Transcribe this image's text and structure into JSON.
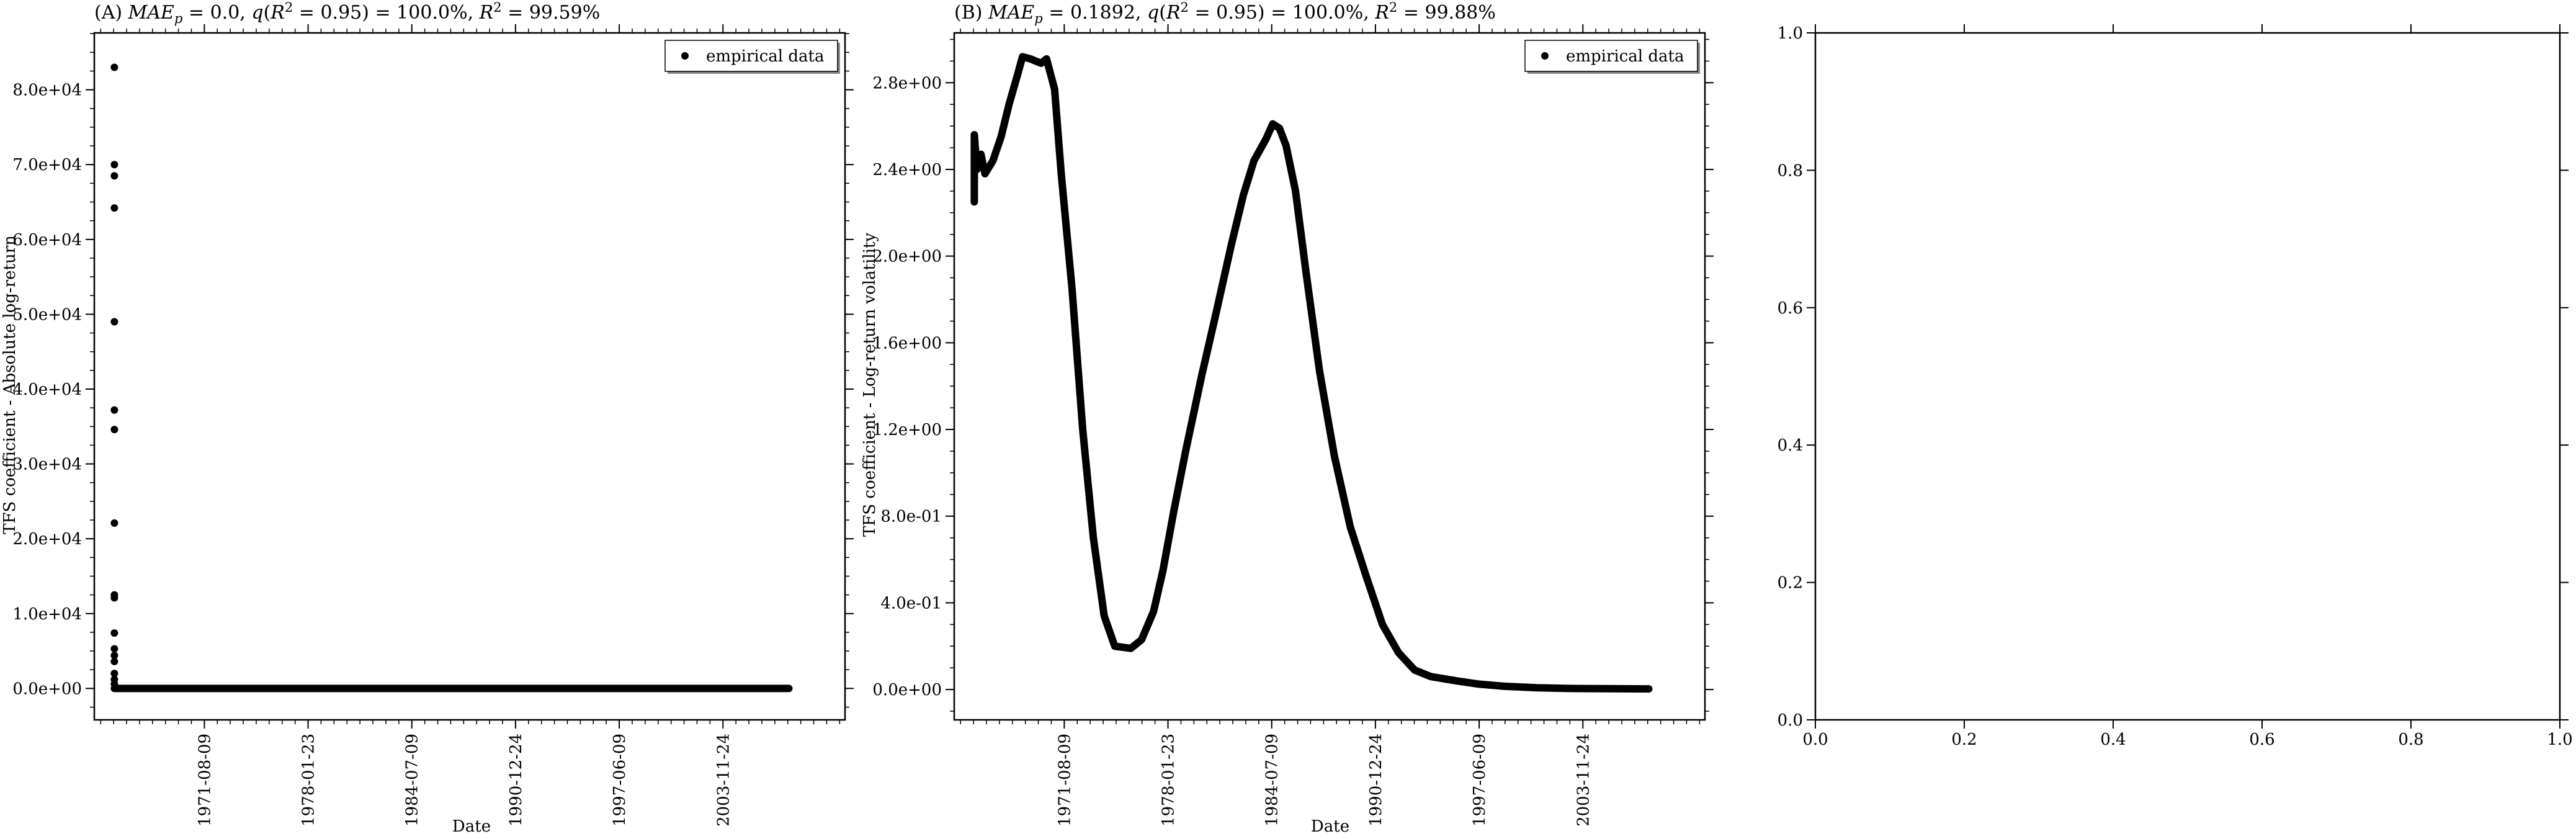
{
  "chart_data": [
    {
      "type": "scatter",
      "title": "(A) MAE_p = 0.0, q(R^2 = 0.95) = 100.0%, R^2 = 99.59%",
      "title_parts": {
        "label": "(A) ",
        "mae_sym": "MAE",
        "mae_sub": "p",
        "mae_val": " = 0.0, ",
        "q_sym": "q",
        "q_mid": "(",
        "r_sym": "R",
        "sup2": "2",
        "q_val": " = 0.95) = 100.0%, ",
        "r2_val": " = 99.59%"
      },
      "xlabel": "Date",
      "ylabel": "TFS coefficient - Absolute log-return",
      "x_tick_labels": [
        "1971-08-09",
        "1978-01-23",
        "1984-07-09",
        "1990-12-24",
        "1997-06-09",
        "2003-11-24"
      ],
      "x_tick_values": [
        "1971-08-09",
        "1978-01-23",
        "1984-07-09",
        "1990-12-24",
        "1997-06-09",
        "2003-11-24"
      ],
      "y_tick_labels": [
        "0.0e+00",
        "1.0e+04",
        "2.0e+04",
        "3.0e+04",
        "4.0e+04",
        "5.0e+04",
        "6.0e+04",
        "7.0e+04",
        "8.0e+04"
      ],
      "y_tick_values": [
        0,
        10000,
        20000,
        30000,
        40000,
        50000,
        60000,
        70000,
        80000
      ],
      "xlim": [
        "1964-10-01",
        "2011-07-01"
      ],
      "ylim": [
        -4200,
        87600
      ],
      "legend": {
        "label": "empirical data",
        "position": "top-right"
      },
      "series": [
        {
          "name": "empirical data",
          "spikes": [
            [
              "1966-01-01",
              83000
            ],
            [
              "1966-01-01",
              70000
            ],
            [
              "1966-01-01",
              68500
            ],
            [
              "1966-01-01",
              64200
            ],
            [
              "1966-01-01",
              49000
            ],
            [
              "1966-01-01",
              37200
            ],
            [
              "1966-01-01",
              34600
            ],
            [
              "1966-01-01",
              22100
            ],
            [
              "1966-01-01",
              12500
            ],
            [
              "1966-01-01",
              12100
            ],
            [
              "1966-01-01",
              7400
            ],
            [
              "1966-01-01",
              5300
            ],
            [
              "1966-01-01",
              4400
            ],
            [
              "1966-01-01",
              3600
            ],
            [
              "1966-01-01",
              2000
            ],
            [
              "1966-01-01",
              1200
            ],
            [
              "1966-01-01",
              600
            ]
          ],
          "baseline": {
            "from": "1966-01-01",
            "to": "2008-01-01",
            "value": 0
          }
        }
      ]
    },
    {
      "type": "scatter",
      "title": "(B) MAE_p = 0.1892, q(R^2 = 0.95) = 100.0%, R^2 = 99.88%",
      "title_parts": {
        "label": "(B) ",
        "mae_sym": "MAE",
        "mae_sub": "p",
        "mae_val": " = 0.1892, ",
        "q_sym": "q",
        "q_mid": "(",
        "r_sym": "R",
        "sup2": "2",
        "q_val": " = 0.95) = 100.0%, ",
        "r2_val": " = 99.88%"
      },
      "xlabel": "Date",
      "ylabel": "TFS coefficient - Log-return volatility",
      "x_tick_labels": [
        "1971-08-09",
        "1978-01-23",
        "1984-07-09",
        "1990-12-24",
        "1997-06-09",
        "2003-11-24"
      ],
      "x_tick_values": [
        "1971-08-09",
        "1978-01-23",
        "1984-07-09",
        "1990-12-24",
        "1997-06-09",
        "2003-11-24"
      ],
      "y_tick_labels": [
        "0.0e+00",
        "4.0e-01",
        "8.0e-01",
        "1.2e+00",
        "1.6e+00",
        "2.0e+00",
        "2.4e+00",
        "2.8e+00"
      ],
      "y_tick_values": [
        0,
        0.4,
        0.8,
        1.2,
        1.6,
        2.0,
        2.4,
        2.8
      ],
      "xlim": [
        "1964-10-01",
        "2011-07-01"
      ],
      "ylim": [
        -0.14,
        3.03
      ],
      "legend": {
        "label": "empirical data",
        "position": "top-right"
      },
      "series": [
        {
          "name": "empirical data",
          "curve": [
            [
              "1966-01-01",
              2.25
            ],
            [
              "1966-01-01",
              2.56
            ],
            [
              "1966-03-01",
              2.4
            ],
            [
              "1966-06-01",
              2.47
            ],
            [
              "1966-09-01",
              2.38
            ],
            [
              "1967-03-01",
              2.44
            ],
            [
              "1967-09-01",
              2.55
            ],
            [
              "1968-03-01",
              2.7
            ],
            [
              "1968-09-01",
              2.83
            ],
            [
              "1969-01-01",
              2.92
            ],
            [
              "1969-07-01",
              2.91
            ],
            [
              "1970-03-01",
              2.89
            ],
            [
              "1970-07-01",
              2.91
            ],
            [
              "1971-01-01",
              2.77
            ],
            [
              "1971-06-01",
              2.38
            ],
            [
              "1972-02-01",
              1.85
            ],
            [
              "1972-10-01",
              1.2
            ],
            [
              "1973-06-01",
              0.7
            ],
            [
              "1974-02-01",
              0.34
            ],
            [
              "1974-10-01",
              0.2
            ],
            [
              "1975-10-01",
              0.19
            ],
            [
              "1976-06-01",
              0.23
            ],
            [
              "1977-03-01",
              0.36
            ],
            [
              "1977-10-01",
              0.55
            ],
            [
              "1978-06-01",
              0.82
            ],
            [
              "1979-03-01",
              1.1
            ],
            [
              "1980-03-01",
              1.45
            ],
            [
              "1981-01-01",
              1.72
            ],
            [
              "1982-01-01",
              2.05
            ],
            [
              "1982-10-01",
              2.28
            ],
            [
              "1983-06-01",
              2.44
            ],
            [
              "1984-03-01",
              2.54
            ],
            [
              "1984-08-01",
              2.61
            ],
            [
              "1985-01-01",
              2.59
            ],
            [
              "1985-06-01",
              2.51
            ],
            [
              "1986-01-01",
              2.3
            ],
            [
              "1986-09-01",
              1.92
            ],
            [
              "1987-07-01",
              1.47
            ],
            [
              "1988-06-01",
              1.08
            ],
            [
              "1989-06-01",
              0.75
            ],
            [
              "1990-06-01",
              0.52
            ],
            [
              "1991-06-01",
              0.3
            ],
            [
              "1992-06-01",
              0.17
            ],
            [
              "1993-06-01",
              0.09
            ],
            [
              "1994-06-01",
              0.06
            ],
            [
              "1996-01-01",
              0.04
            ],
            [
              "1997-06-01",
              0.025
            ],
            [
              "1999-01-01",
              0.015
            ],
            [
              "2001-01-01",
              0.008
            ],
            [
              "2003-01-01",
              0.005
            ],
            [
              "2008-01-01",
              0.003
            ]
          ]
        }
      ]
    },
    {
      "type": "scatter",
      "empty": true,
      "title": "",
      "xlabel": "",
      "ylabel": "",
      "x_tick_labels": [
        "0.0",
        "0.2",
        "0.4",
        "0.6",
        "0.8",
        "1.0"
      ],
      "x_tick_values": [
        0,
        0.2,
        0.4,
        0.6,
        0.8,
        1.0
      ],
      "y_tick_labels": [
        "0.0",
        "0.2",
        "0.4",
        "0.6",
        "0.8",
        "1.0"
      ],
      "y_tick_values": [
        0,
        0.2,
        0.4,
        0.6,
        0.8,
        1.0
      ],
      "xlim": [
        0,
        1
      ],
      "ylim": [
        0,
        1
      ]
    }
  ]
}
